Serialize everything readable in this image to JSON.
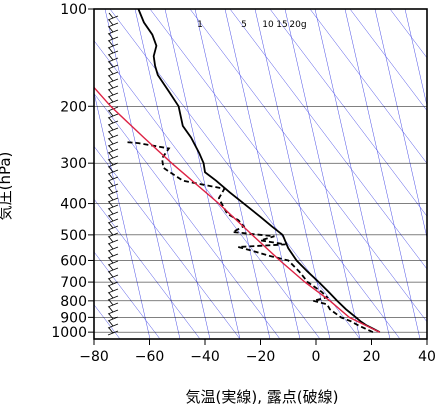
{
  "chart_data": {
    "type": "line",
    "title": "",
    "xlabel": "気温(実線), 露点(破線)",
    "ylabel": "気圧(hPa)",
    "xlim": [
      -80,
      40
    ],
    "ylim": [
      1050,
      100
    ],
    "yscale": "log",
    "x_ticks": [
      "−80",
      "−60",
      "−40",
      "−20",
      "0",
      "20",
      "40"
    ],
    "x_tick_values": [
      -80,
      -60,
      -40,
      -20,
      0,
      20,
      40
    ],
    "y_ticks": [
      "100",
      "200",
      "300",
      "400",
      "500",
      "600",
      "700",
      "800",
      "900",
      "1000"
    ],
    "y_tick_values": [
      100,
      200,
      300,
      400,
      500,
      600,
      700,
      800,
      900,
      1000
    ],
    "grid": true,
    "mixing_ratio_labels": [
      "1",
      "5",
      "10",
      "15",
      "20g"
    ],
    "series": [
      {
        "style": "solid",
        "color": "#000000",
        "points": [
          [
            1000,
            23.0
          ],
          [
            975,
            20.5
          ],
          [
            950,
            18.0
          ],
          [
            925,
            16.0
          ],
          [
            900,
            14.4
          ],
          [
            850,
            10.8
          ],
          [
            800,
            7.6
          ],
          [
            750,
            4.5
          ],
          [
            700,
            1.0
          ],
          [
            650,
            -3.0
          ],
          [
            600,
            -7.0
          ],
          [
            550,
            -10.0
          ],
          [
            500,
            -12.0
          ],
          [
            470,
            -16.0
          ],
          [
            440,
            -20.0
          ],
          [
            400,
            -26.0
          ],
          [
            370,
            -31.0
          ],
          [
            340,
            -36.0
          ],
          [
            320,
            -40.0
          ],
          [
            300,
            -40.5
          ],
          [
            280,
            -42.0
          ],
          [
            250,
            -45.0
          ],
          [
            230,
            -48.0
          ],
          [
            200,
            -49.5
          ],
          [
            180,
            -53.0
          ],
          [
            160,
            -57.0
          ],
          [
            150,
            -58.0
          ],
          [
            140,
            -58.5
          ],
          [
            130,
            -57.5
          ],
          [
            120,
            -59.0
          ],
          [
            110,
            -62.0
          ],
          [
            100,
            -64.0
          ]
        ]
      },
      {
        "style": "dashed",
        "color": "#000000",
        "points": [
          [
            1000,
            20.5
          ],
          [
            950,
            15.0
          ],
          [
            925,
            12.5
          ],
          [
            900,
            9.0
          ],
          [
            850,
            5.0
          ],
          [
            820,
            4.0
          ],
          [
            800,
            -1.0
          ],
          [
            780,
            4.0
          ],
          [
            750,
            2.0
          ],
          [
            700,
            -3.0
          ],
          [
            650,
            -6.0
          ],
          [
            600,
            -10.0
          ],
          [
            580,
            -17.0
          ],
          [
            560,
            -23.0
          ],
          [
            545,
            -28.0
          ],
          [
            535,
            -11.0
          ],
          [
            520,
            -20.0
          ],
          [
            505,
            -15.0
          ],
          [
            490,
            -30.0
          ],
          [
            470,
            -26.0
          ],
          [
            450,
            -28.0
          ],
          [
            430,
            -32.0
          ],
          [
            400,
            -34.0
          ],
          [
            385,
            -35.0
          ],
          [
            360,
            -33.0
          ],
          [
            340,
            -48.0
          ],
          [
            310,
            -55.0
          ],
          [
            290,
            -55.5
          ],
          [
            270,
            -53.0
          ],
          [
            260,
            -64.0
          ],
          [
            258,
            -69.0
          ]
        ]
      },
      {
        "style": "solid",
        "color": "#dd2244",
        "points": [
          [
            1000,
            23.0
          ],
          [
            900,
            12.0
          ],
          [
            800,
            5.0
          ],
          [
            700,
            -4.0
          ],
          [
            600,
            -13.0
          ],
          [
            500,
            -23.0
          ],
          [
            400,
            -35.0
          ],
          [
            300,
            -52.0
          ],
          [
            250,
            -62.0
          ],
          [
            200,
            -74.0
          ],
          [
            175,
            -80.0
          ]
        ]
      }
    ]
  }
}
